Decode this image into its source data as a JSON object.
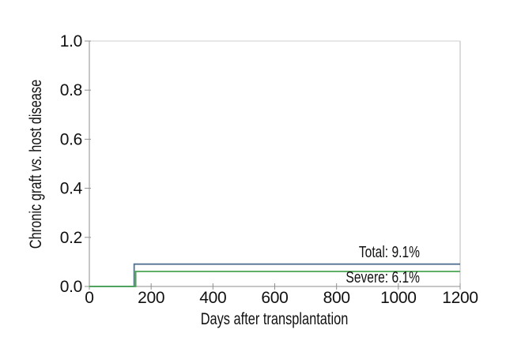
{
  "chart_data": {
    "type": "line",
    "subtype": "cumulative-incidence-step-curve",
    "title": "",
    "xlabel": "Days after transplantation",
    "ylabel": "Chronic graft vs. host disease",
    "ylabel_parts": {
      "pre": "Chronic graft",
      "italic": "vs.",
      "post": "host disease"
    },
    "xlim": [
      0,
      1200
    ],
    "ylim": [
      0.0,
      1.0
    ],
    "x_ticks": [
      0,
      200,
      400,
      600,
      800,
      1000,
      1200
    ],
    "y_ticks": [
      0.0,
      0.2,
      0.4,
      0.6,
      0.8,
      1.0
    ],
    "y_tick_labels": [
      "0.0",
      "0.2",
      "0.4",
      "0.6",
      "0.8",
      "1.0"
    ],
    "grid": false,
    "frame": true,
    "legend_position": "inline-annotations",
    "axis_color": "#8f8f8f",
    "text_color": "#111111",
    "series": [
      {
        "name": "Total",
        "annotation": "Total: 9.1%",
        "color": "#537292",
        "step_day": 145,
        "plateau_value": 0.091,
        "points": [
          [
            0,
            0
          ],
          [
            145,
            0
          ],
          [
            145,
            0.091
          ],
          [
            1200,
            0.091
          ]
        ]
      },
      {
        "name": "Severe",
        "annotation": "Severe: 6.1%",
        "color": "#4aa553",
        "step_day": 150,
        "plateau_value": 0.061,
        "points": [
          [
            0,
            0
          ],
          [
            150,
            0
          ],
          [
            150,
            0.061
          ],
          [
            1200,
            0.061
          ]
        ]
      }
    ]
  }
}
